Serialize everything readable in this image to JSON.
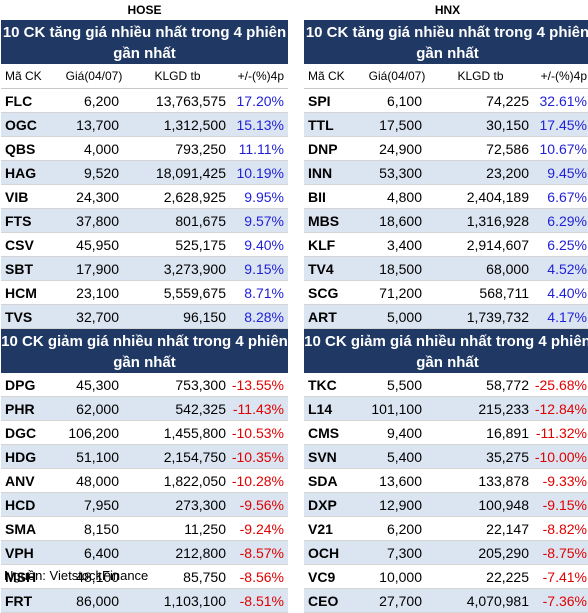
{
  "source": "Nguồn: VietstockFinance",
  "columns": [
    "Mã CK",
    "Giá(04/07)",
    "KLGD tb",
    "+/-(%)4p"
  ],
  "colors": {
    "header_bg": "#1f3864",
    "alt_row": "#dbe5f1",
    "up": "#1f1fd6",
    "down": "#e00000"
  },
  "hose": {
    "name": "HOSE",
    "gain_title": "10 CK tăng giá nhiều nhất trong 4 phiên gần nhất",
    "gainers": [
      [
        "FLC",
        "6,200",
        "13,763,575",
        "17.20%"
      ],
      [
        "OGC",
        "13,700",
        "1,312,500",
        "15.13%"
      ],
      [
        "QBS",
        "4,000",
        "793,250",
        "11.11%"
      ],
      [
        "HAG",
        "9,520",
        "18,091,425",
        "10.19%"
      ],
      [
        "VIB",
        "24,300",
        "2,628,925",
        "9.95%"
      ],
      [
        "FTS",
        "37,800",
        "801,675",
        "9.57%"
      ],
      [
        "CSV",
        "45,950",
        "525,175",
        "9.40%"
      ],
      [
        "SBT",
        "17,900",
        "3,273,900",
        "9.15%"
      ],
      [
        "HCM",
        "23,100",
        "5,559,675",
        "8.71%"
      ],
      [
        "TVS",
        "32,700",
        "96,150",
        "8.28%"
      ]
    ],
    "lose_title": "10 CK giảm giá nhiều nhất trong 4 phiên gần nhất",
    "losers": [
      [
        "DPG",
        "45,300",
        "753,300",
        "-13.55%"
      ],
      [
        "PHR",
        "62,000",
        "542,325",
        "-11.43%"
      ],
      [
        "DGC",
        "106,200",
        "1,455,800",
        "-10.53%"
      ],
      [
        "HDG",
        "51,100",
        "2,154,750",
        "-10.35%"
      ],
      [
        "ANV",
        "48,000",
        "1,822,050",
        "-10.28%"
      ],
      [
        "HCD",
        "7,950",
        "273,300",
        "-9.56%"
      ],
      [
        "SMA",
        "8,150",
        "11,250",
        "-9.24%"
      ],
      [
        "VPH",
        "6,400",
        "212,800",
        "-8.57%"
      ],
      [
        "MSH",
        "48,100",
        "85,750",
        "-8.56%"
      ],
      [
        "FRT",
        "86,000",
        "1,103,100",
        "-8.51%"
      ]
    ]
  },
  "hnx": {
    "name": "HNX",
    "gain_title": "10 CK tăng giá nhiều nhất trong 4 phiên gần nhất",
    "gainers": [
      [
        "SPI",
        "6,100",
        "74,225",
        "32.61%"
      ],
      [
        "TTL",
        "17,500",
        "30,150",
        "17.45%"
      ],
      [
        "DNP",
        "24,900",
        "72,586",
        "10.67%"
      ],
      [
        "INN",
        "53,300",
        "23,200",
        "9.45%"
      ],
      [
        "BII",
        "4,800",
        "2,404,189",
        "6.67%"
      ],
      [
        "MBS",
        "18,600",
        "1,316,928",
        "6.29%"
      ],
      [
        "KLF",
        "3,400",
        "2,914,607",
        "6.25%"
      ],
      [
        "TV4",
        "18,500",
        "68,000",
        "4.52%"
      ],
      [
        "SCG",
        "71,200",
        "568,711",
        "4.40%"
      ],
      [
        "ART",
        "5,000",
        "1,739,732",
        "4.17%"
      ]
    ],
    "lose_title": "10 CK giảm giá nhiều nhất trong 4 phiên gần nhất",
    "losers": [
      [
        "TKC",
        "5,500",
        "58,772",
        "-25.68%"
      ],
      [
        "L14",
        "101,100",
        "215,233",
        "-12.84%"
      ],
      [
        "CMS",
        "9,400",
        "16,891",
        "-11.32%"
      ],
      [
        "SVN",
        "5,400",
        "35,275",
        "-10.00%"
      ],
      [
        "SDA",
        "13,600",
        "133,878",
        "-9.33%"
      ],
      [
        "DXP",
        "12,900",
        "100,948",
        "-9.15%"
      ],
      [
        "V21",
        "6,200",
        "22,147",
        "-8.82%"
      ],
      [
        "OCH",
        "7,300",
        "205,290",
        "-8.75%"
      ],
      [
        "VC9",
        "10,000",
        "22,225",
        "-7.41%"
      ],
      [
        "CEO",
        "27,700",
        "4,070,981",
        "-7.36%"
      ]
    ]
  }
}
